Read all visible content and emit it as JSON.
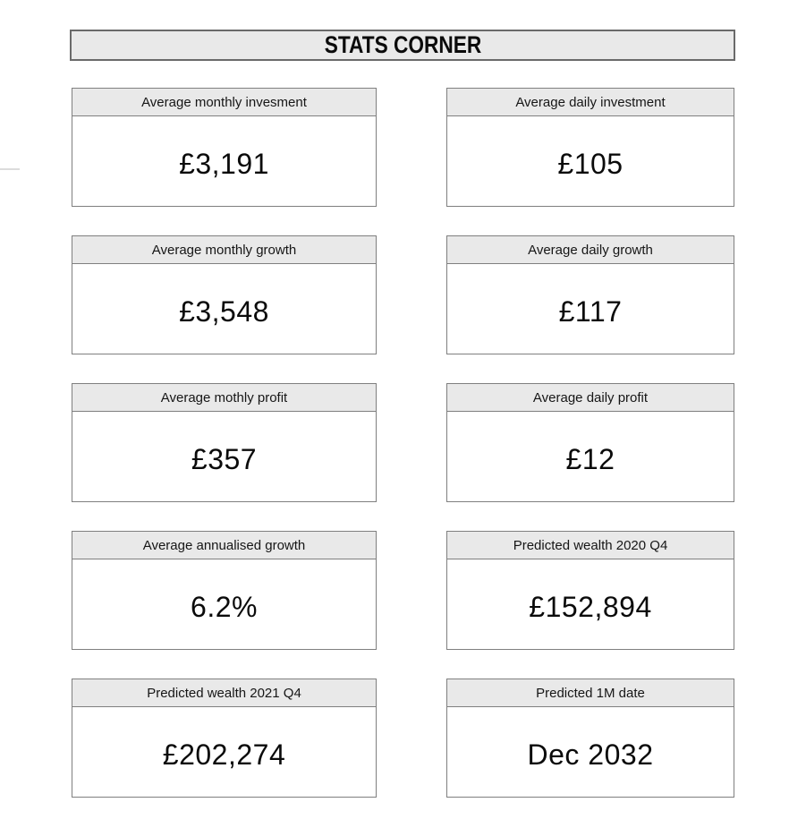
{
  "page": {
    "title": "STATS CORNER"
  },
  "cards": [
    {
      "label": "Average monthly invesment",
      "value": "£3,191"
    },
    {
      "label": "Average daily investment",
      "value": "£105"
    },
    {
      "label": "Average monthly growth",
      "value": "£3,548"
    },
    {
      "label": "Average daily growth",
      "value": "£117"
    },
    {
      "label": "Average mothly profit",
      "value": "£357"
    },
    {
      "label": "Average daily profit",
      "value": "£12"
    },
    {
      "label": "Average annualised growth",
      "value": "6.2%"
    },
    {
      "label": "Predicted wealth 2020 Q4",
      "value": "£152,894"
    },
    {
      "label": "Predicted wealth 2021 Q4",
      "value": "£202,274"
    },
    {
      "label": "Predicted 1M date",
      "value": "Dec 2032"
    }
  ],
  "colors": {
    "header_fill": "#e9e9e9",
    "card_border": "#7f7f7f",
    "title_border": "#6a6a6a",
    "text": "#111111",
    "edge_artifact": "#dcdcdc"
  }
}
